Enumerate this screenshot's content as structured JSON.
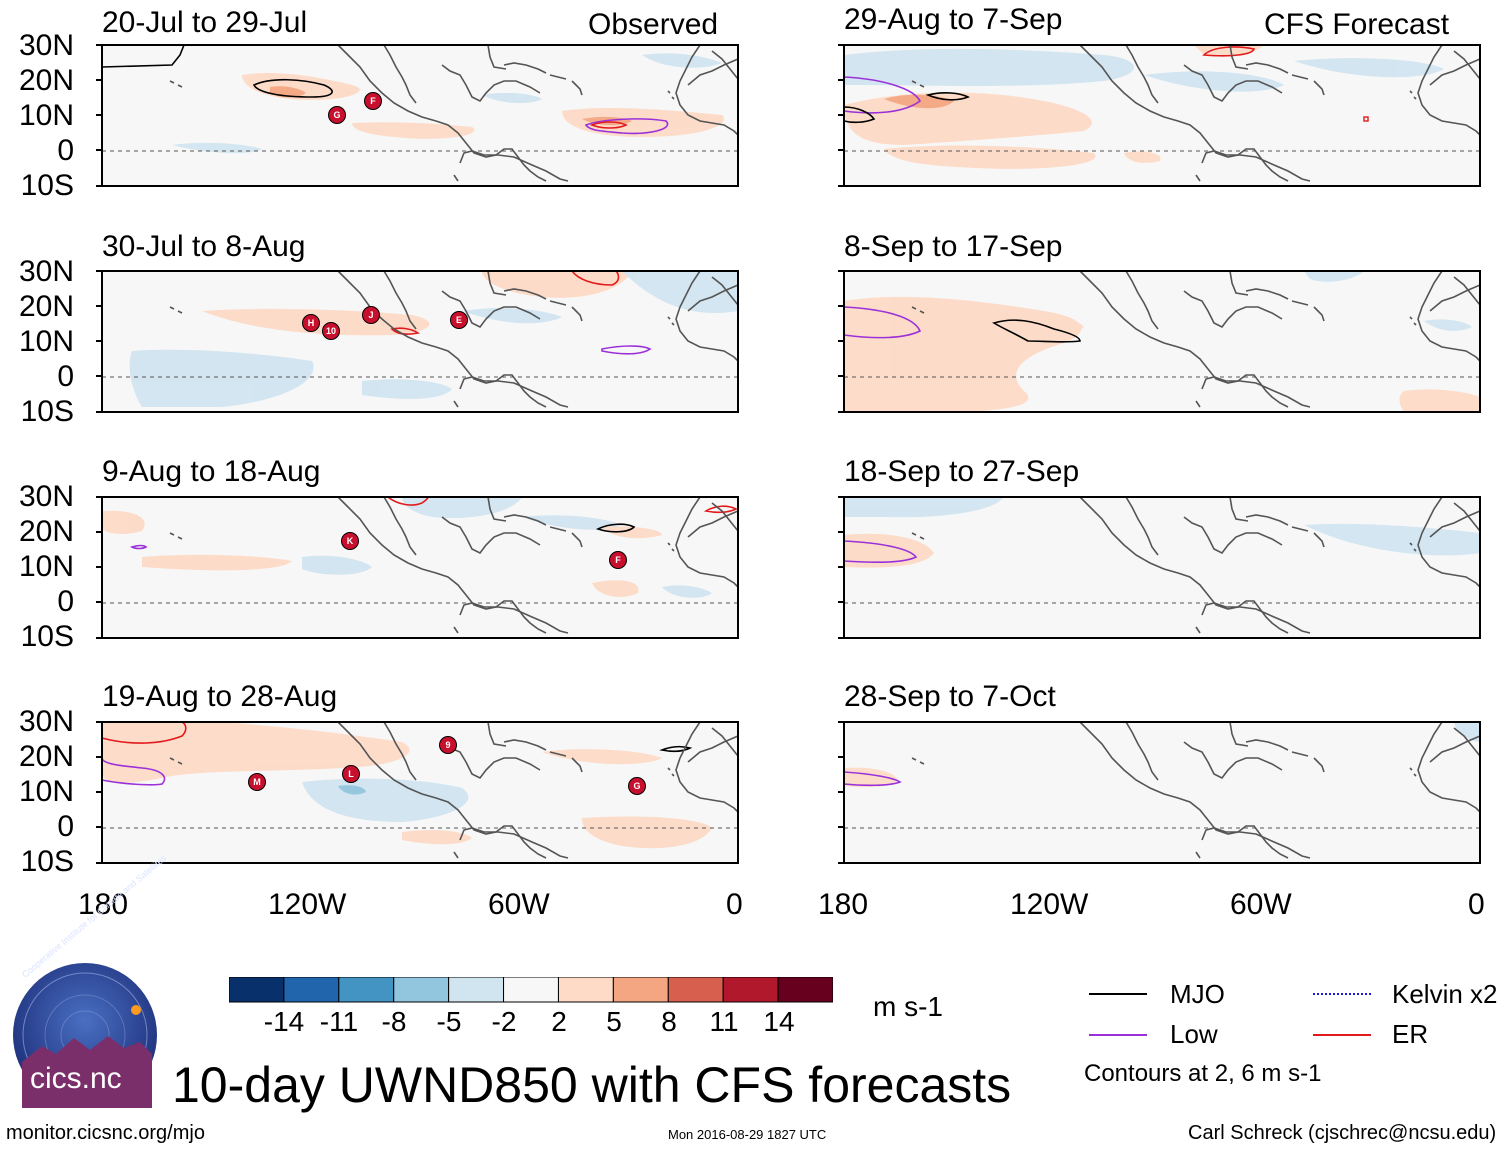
{
  "columns": {
    "left_tag": "Observed",
    "right_tag": "CFS Forecast"
  },
  "panels_left": [
    {
      "title": "20-Jul to 29-Jul"
    },
    {
      "title": "30-Jul to 8-Aug"
    },
    {
      "title": "9-Aug to 18-Aug"
    },
    {
      "title": "19-Aug to 28-Aug"
    }
  ],
  "panels_right": [
    {
      "title": "29-Aug to 7-Sep"
    },
    {
      "title": "8-Sep to 17-Sep"
    },
    {
      "title": "18-Sep to 27-Sep"
    },
    {
      "title": "28-Sep to 7-Oct"
    }
  ],
  "lat_labels": [
    "30N",
    "20N",
    "10N",
    "0",
    "10S"
  ],
  "lon_labels": [
    "180",
    "120W",
    "60W",
    "0"
  ],
  "storms": {
    "p0": [
      "G",
      "F"
    ],
    "p1": [
      "H",
      "10",
      "J",
      "E"
    ],
    "p2": [
      "K",
      "F"
    ],
    "p3": [
      "M",
      "L",
      "9",
      "G"
    ]
  },
  "colorbar": {
    "colors": [
      "#08306b",
      "#2166ac",
      "#4393c3",
      "#92c5de",
      "#d1e5f0",
      "#f7f7f7",
      "#fddbc7",
      "#f4a582",
      "#d6604d",
      "#b2182b",
      "#67001f"
    ],
    "labels": [
      "-14",
      "-11",
      "-8",
      "-5",
      "-2",
      "2",
      "5",
      "8",
      "11",
      "14"
    ],
    "units": "m s-1"
  },
  "legend": {
    "mjo": "MJO",
    "low": "Low",
    "kelvin": "Kelvin x2",
    "er": "ER",
    "contours_note": "Contours at 2, 6 m s-1",
    "colors": {
      "mjo": "#000000",
      "low": "#9b30d9",
      "kelvin": "#1a1adb",
      "er": "#e31a1c"
    }
  },
  "main_title": "10-day UWND850 with CFS forecasts",
  "logo_text": "cics.nc",
  "logo_ring_text": "Cooperative Institute for Climate and Satellites",
  "footer": {
    "url": "monitor.cicsnc.org/mjo",
    "timestamp": "Mon 2016-08-29 1827 UTC",
    "author": "Carl Schreck (cjschrec@ncsu.edu)"
  }
}
